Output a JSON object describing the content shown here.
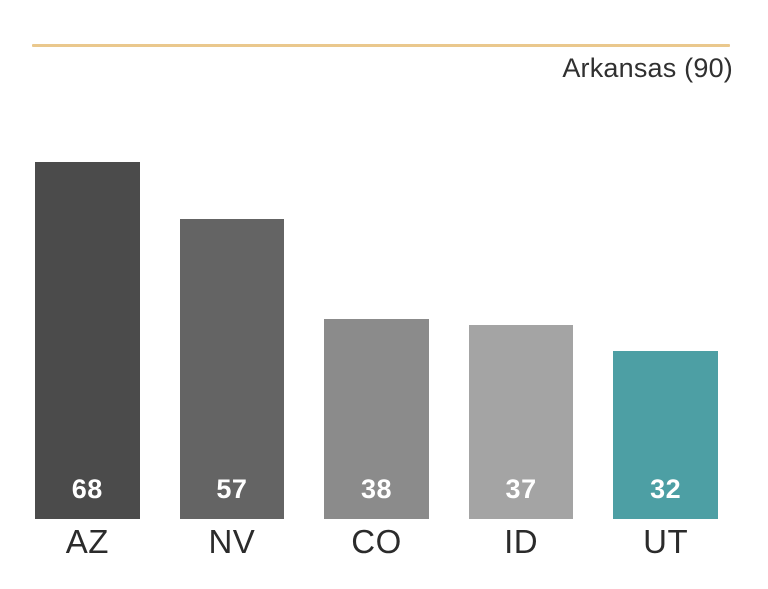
{
  "header": {
    "reference_label": "Arkansas (90)"
  },
  "colors": {
    "background": "#ffffff",
    "reference_line": "#eac88d",
    "reference_label_text": "#303030",
    "bar_colors": [
      "#4b4b4b",
      "#646464",
      "#8b8b8b",
      "#a4a4a4",
      "#4d9fa4"
    ],
    "value_label_text": "#ffffff",
    "category_label_text": "#2b2b2b"
  },
  "chart_data": {
    "type": "bar",
    "categories": [
      "AZ",
      "NV",
      "CO",
      "ID",
      "UT"
    ],
    "values": [
      68,
      57,
      38,
      37,
      32
    ],
    "value_labels": [
      "68",
      "57",
      "38",
      "37",
      "32"
    ],
    "reference": {
      "label": "Arkansas",
      "value": 90
    },
    "title": "",
    "xlabel": "",
    "ylabel": "",
    "ylim": [
      0,
      90
    ],
    "grid": false,
    "legend": false,
    "value_labels_position": "inside-bottom",
    "highlight_index": 4
  }
}
